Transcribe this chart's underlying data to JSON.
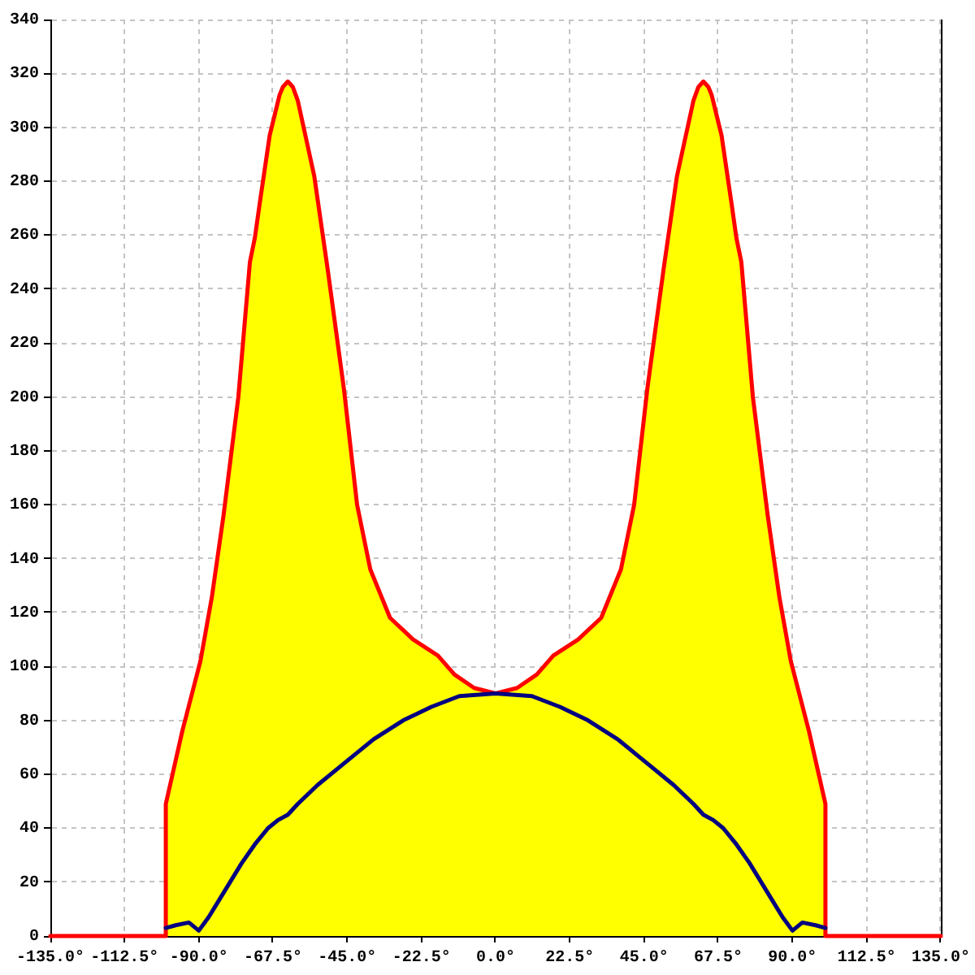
{
  "chart_data": {
    "type": "area",
    "x": [
      -135,
      -100,
      -100,
      -95,
      -89.5,
      -86,
      -82.5,
      -78,
      -74.5,
      -73,
      -71.5,
      -68.5,
      -65.5,
      -64.5,
      -63,
      -61.5,
      -60,
      -55,
      -51,
      -46,
      -42,
      -38,
      -32,
      -25,
      -17.5,
      -12.5,
      -6.5,
      0,
      6.5,
      12.5,
      17.5,
      25,
      32,
      38,
      42,
      46,
      51,
      55,
      60,
      61.5,
      63,
      64.5,
      65.5,
      68.5,
      71.5,
      73,
      74.5,
      78,
      82.5,
      86,
      89.5,
      95,
      100,
      100,
      135
    ],
    "series": [
      {
        "type": "area",
        "color": "#ffff00",
        "x": [
          -100,
          -95,
          -89.5,
          -86,
          -82.5,
          -78,
          -74.5,
          -73,
          -71.5,
          -68.5,
          -65.5,
          -64.5,
          -63,
          -61.5,
          -60,
          -55,
          -51,
          -46,
          -42,
          -38,
          -32,
          -25,
          -17.5,
          -12.5,
          -6.5,
          0,
          6.5,
          12.5,
          17.5,
          25,
          32,
          38,
          42,
          46,
          51,
          55,
          60,
          61.5,
          63,
          64.5,
          65.5,
          68.5,
          71.5,
          73,
          74.5,
          78,
          82.5,
          86,
          89.5,
          95,
          100
        ],
        "values": [
          49,
          76,
          102,
          126,
          156,
          200,
          250,
          259,
          272,
          297,
          312,
          315,
          317,
          315,
          310,
          282,
          248,
          203,
          160,
          136,
          118,
          110,
          104,
          97,
          92,
          90,
          92,
          97,
          104,
          110,
          118,
          136,
          160,
          203,
          248,
          282,
          310,
          315,
          317,
          315,
          312,
          297,
          272,
          259,
          250,
          200,
          156,
          126,
          102,
          76,
          49
        ]
      },
      {
        "type": "line",
        "color": "#ff0000",
        "values": [
          0,
          0,
          49,
          76,
          102,
          126,
          156,
          200,
          250,
          259,
          272,
          297,
          312,
          315,
          317,
          315,
          310,
          282,
          248,
          203,
          160,
          136,
          118,
          110,
          104,
          97,
          92,
          90,
          92,
          97,
          104,
          110,
          118,
          136,
          160,
          203,
          248,
          282,
          310,
          315,
          317,
          315,
          312,
          297,
          272,
          259,
          250,
          200,
          156,
          126,
          102,
          76,
          49,
          0,
          0
        ]
      },
      {
        "type": "line",
        "color": "#000080",
        "x": [
          -100,
          -97,
          -93,
          -90,
          -87,
          -84,
          -80.5,
          -77,
          -73,
          -69,
          -66,
          -63,
          -60,
          -54,
          -45,
          -37,
          -28,
          -19.5,
          -11,
          0,
          11,
          19.5,
          28,
          37,
          45,
          54,
          60,
          63,
          66,
          69,
          73,
          77,
          80.5,
          84,
          87,
          90,
          93,
          97,
          100
        ],
        "values": [
          3,
          4,
          5,
          2,
          7,
          13,
          20,
          27,
          34,
          40,
          43,
          45,
          49,
          56,
          65,
          73,
          80,
          85,
          89,
          90,
          89,
          85,
          80,
          73,
          65,
          56,
          49,
          45,
          43,
          40,
          34,
          27,
          20,
          13,
          7,
          2,
          5,
          4,
          3
        ]
      }
    ],
    "xlim": [
      -135,
      135
    ],
    "xticks": [
      {
        "value": -135,
        "label": "-135.0°"
      },
      {
        "value": -112.5,
        "label": "-112.5°"
      },
      {
        "value": -90,
        "label": "-90.0°"
      },
      {
        "value": -67.5,
        "label": "-67.5°"
      },
      {
        "value": -45,
        "label": "-45.0°"
      },
      {
        "value": -22.5,
        "label": "-22.5°"
      },
      {
        "value": 0,
        "label": "0.0°"
      },
      {
        "value": 22.5,
        "label": "22.5°"
      },
      {
        "value": 45,
        "label": "45.0°"
      },
      {
        "value": 67.5,
        "label": "67.5°"
      },
      {
        "value": 90,
        "label": "90.0°"
      },
      {
        "value": 112.5,
        "label": "112.5°"
      },
      {
        "value": 135,
        "label": "135.0°"
      }
    ],
    "ylim": [
      0,
      340
    ],
    "yticks": [
      0,
      20,
      40,
      60,
      80,
      100,
      120,
      140,
      160,
      180,
      200,
      220,
      240,
      260,
      280,
      300,
      320,
      340
    ],
    "grid": true
  }
}
